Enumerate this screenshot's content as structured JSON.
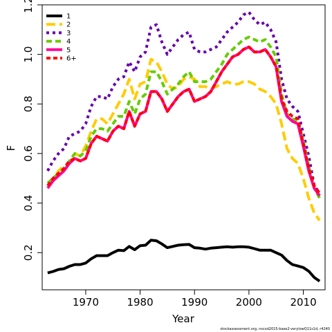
{
  "chart_data": {
    "type": "line",
    "xlabel": "Year",
    "ylabel": "F",
    "xlim": [
      1962,
      2014
    ],
    "ylim": [
      0.05,
      1.2
    ],
    "x_ticks": [
      1970,
      1980,
      1990,
      2000,
      2010
    ],
    "y_ticks": [
      0.2,
      0.4,
      0.6,
      0.8,
      1.0,
      1.2
    ],
    "y_tick_labels": [
      "0.2",
      "0.4",
      "0.6",
      "0.8",
      "1.0",
      "1.2"
    ],
    "legend_position": "top-left",
    "x": [
      1963,
      1964,
      1965,
      1966,
      1967,
      1968,
      1969,
      1970,
      1971,
      1972,
      1973,
      1974,
      1975,
      1976,
      1977,
      1978,
      1979,
      1980,
      1981,
      1982,
      1983,
      1984,
      1985,
      1986,
      1987,
      1988,
      1989,
      1990,
      1991,
      1992,
      1993,
      1994,
      1995,
      1996,
      1997,
      1998,
      1999,
      2000,
      2001,
      2002,
      2003,
      2004,
      2005,
      2006,
      2007,
      2008,
      2009,
      2010,
      2011,
      2012,
      2013
    ],
    "series": [
      {
        "name": "1",
        "color": "#000000",
        "dash": "solid",
        "values": [
          0.118,
          0.124,
          0.132,
          0.135,
          0.145,
          0.152,
          0.152,
          0.158,
          0.175,
          0.188,
          0.188,
          0.188,
          0.2,
          0.21,
          0.208,
          0.225,
          0.212,
          0.228,
          0.23,
          0.25,
          0.248,
          0.235,
          0.22,
          0.225,
          0.23,
          0.232,
          0.233,
          0.22,
          0.218,
          0.214,
          0.218,
          0.22,
          0.222,
          0.224,
          0.222,
          0.224,
          0.224,
          0.222,
          0.216,
          0.21,
          0.21,
          0.21,
          0.2,
          0.19,
          0.168,
          0.152,
          0.146,
          0.14,
          0.125,
          0.1,
          0.085
        ]
      },
      {
        "name": "2",
        "color": "#FFCC00",
        "dash": "long",
        "values": [
          0.48,
          0.49,
          0.53,
          0.55,
          0.56,
          0.6,
          0.59,
          0.63,
          0.69,
          0.74,
          0.74,
          0.72,
          0.76,
          0.8,
          0.84,
          0.9,
          0.82,
          0.88,
          0.89,
          0.98,
          0.97,
          0.93,
          0.88,
          0.86,
          0.87,
          0.9,
          0.91,
          0.9,
          0.87,
          0.87,
          0.86,
          0.87,
          0.88,
          0.89,
          0.88,
          0.88,
          0.89,
          0.89,
          0.88,
          0.86,
          0.85,
          0.83,
          0.8,
          0.72,
          0.62,
          0.58,
          0.56,
          0.5,
          0.42,
          0.36,
          0.33
        ]
      },
      {
        "name": "3",
        "color": "#6600AA",
        "dash": "dotted",
        "values": [
          0.53,
          0.57,
          0.6,
          0.62,
          0.67,
          0.68,
          0.69,
          0.72,
          0.79,
          0.83,
          0.83,
          0.82,
          0.87,
          0.9,
          0.91,
          0.97,
          0.93,
          0.99,
          1.01,
          1.11,
          1.12,
          1.05,
          1.0,
          1.03,
          1.06,
          1.08,
          1.09,
          1.02,
          1.01,
          1.01,
          1.02,
          1.03,
          1.06,
          1.09,
          1.11,
          1.13,
          1.16,
          1.17,
          1.14,
          1.12,
          1.13,
          1.1,
          1.05,
          0.9,
          0.82,
          0.79,
          0.77,
          0.68,
          0.59,
          0.47,
          0.44
        ]
      },
      {
        "name": "4",
        "color": "#66CC00",
        "dash": "medium",
        "values": [
          0.48,
          0.5,
          0.52,
          0.54,
          0.57,
          0.6,
          0.59,
          0.61,
          0.67,
          0.7,
          0.7,
          0.69,
          0.72,
          0.75,
          0.75,
          0.81,
          0.76,
          0.82,
          0.84,
          0.93,
          0.93,
          0.89,
          0.84,
          0.86,
          0.88,
          0.91,
          0.93,
          0.89,
          0.89,
          0.89,
          0.9,
          0.93,
          0.96,
          1.0,
          1.02,
          1.04,
          1.06,
          1.07,
          1.06,
          1.05,
          1.06,
          1.03,
          0.99,
          0.84,
          0.76,
          0.74,
          0.73,
          0.65,
          0.55,
          0.46,
          0.42
        ]
      },
      {
        "name": "5",
        "color": "#FF0099",
        "dash": "solid",
        "values": [
          0.46,
          0.49,
          0.51,
          0.53,
          0.56,
          0.58,
          0.57,
          0.58,
          0.64,
          0.67,
          0.66,
          0.65,
          0.69,
          0.71,
          0.7,
          0.77,
          0.71,
          0.76,
          0.77,
          0.85,
          0.85,
          0.82,
          0.77,
          0.8,
          0.83,
          0.85,
          0.86,
          0.81,
          0.82,
          0.83,
          0.85,
          0.89,
          0.93,
          0.96,
          0.99,
          1.0,
          1.02,
          1.03,
          1.01,
          1.01,
          1.02,
          0.99,
          0.95,
          0.81,
          0.75,
          0.73,
          0.72,
          0.63,
          0.53,
          0.46,
          0.43
        ]
      },
      {
        "name": "6+",
        "color": "#FF0000",
        "dash": "short",
        "values": [
          0.47,
          0.5,
          0.52,
          0.54,
          0.57,
          0.58,
          0.57,
          0.58,
          0.64,
          0.67,
          0.66,
          0.65,
          0.69,
          0.71,
          0.7,
          0.77,
          0.71,
          0.76,
          0.77,
          0.85,
          0.85,
          0.82,
          0.77,
          0.8,
          0.83,
          0.85,
          0.86,
          0.81,
          0.82,
          0.83,
          0.85,
          0.89,
          0.93,
          0.96,
          0.99,
          1.0,
          1.02,
          1.03,
          1.01,
          1.01,
          1.02,
          0.99,
          0.95,
          0.82,
          0.77,
          0.75,
          0.74,
          0.64,
          0.54,
          0.47,
          0.44
        ]
      }
    ]
  },
  "source_note": "stockassessment.org, nscod2015-base2-verylowQ11s1d, r4240"
}
